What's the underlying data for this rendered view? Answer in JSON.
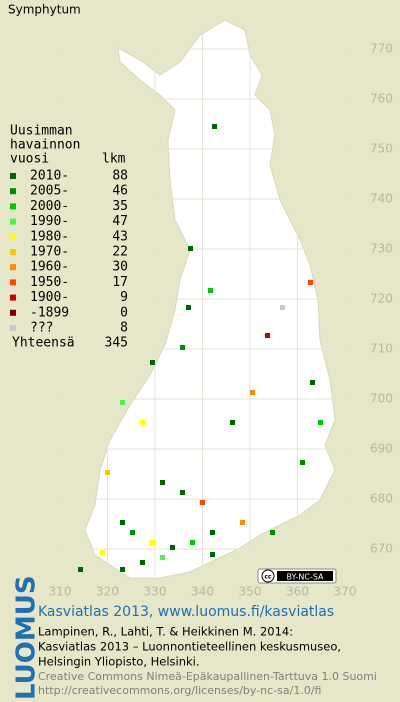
{
  "title": "Symphytum",
  "legend": {
    "heading": [
      "Uusimman",
      "havainnon",
      "vuosi"
    ],
    "count_heading": "lkm",
    "rows": [
      {
        "label": "2010-",
        "count": 88,
        "color": "#006400"
      },
      {
        "label": "2005-",
        "count": 46,
        "color": "#008c00"
      },
      {
        "label": "2000-",
        "count": 35,
        "color": "#00c800"
      },
      {
        "label": "1990-",
        "count": 47,
        "color": "#50f050"
      },
      {
        "label": "1980-",
        "count": 43,
        "color": "#ffff00"
      },
      {
        "label": "1970-",
        "count": 22,
        "color": "#ffc800"
      },
      {
        "label": "1960-",
        "count": 30,
        "color": "#ff8c00"
      },
      {
        "label": "1950-",
        "count": 17,
        "color": "#ff4600"
      },
      {
        "label": "1900-",
        "count": 9,
        "color": "#c80000"
      },
      {
        "label": "-1899",
        "count": 0,
        "color": "#780000"
      },
      {
        "label": "???",
        "count": 8,
        "color": "#c8c8c8"
      }
    ],
    "total_label": "Yhteensä",
    "total": 345
  },
  "map": {
    "x_ticks": [
      310,
      320,
      330,
      340,
      350,
      360,
      370
    ],
    "y_ticks": [
      670,
      680,
      690,
      700,
      710,
      720,
      730,
      740,
      750,
      760,
      770
    ]
  },
  "license_badge": "BY-NC-SA",
  "logo": "LUOMUS",
  "credits": {
    "heading": "Kasviatlas 2013, www.luomus.fi/kasviatlas",
    "citation": [
      "Lampinen, R., Lahti, T. & Heikkinen M. 2014:",
      "Kasviatlas 2013 – Luonnontieteellinen keskusmuseo,",
      "Helsingin Yliopisto, Helsinki."
    ],
    "license": [
      "Creative Commons Nimeä-Epäkaupallinen-Tarttuva 1.0 Suomi",
      "http://creativecommons.org/licenses/by-nc-sa/1.0/fi"
    ]
  }
}
